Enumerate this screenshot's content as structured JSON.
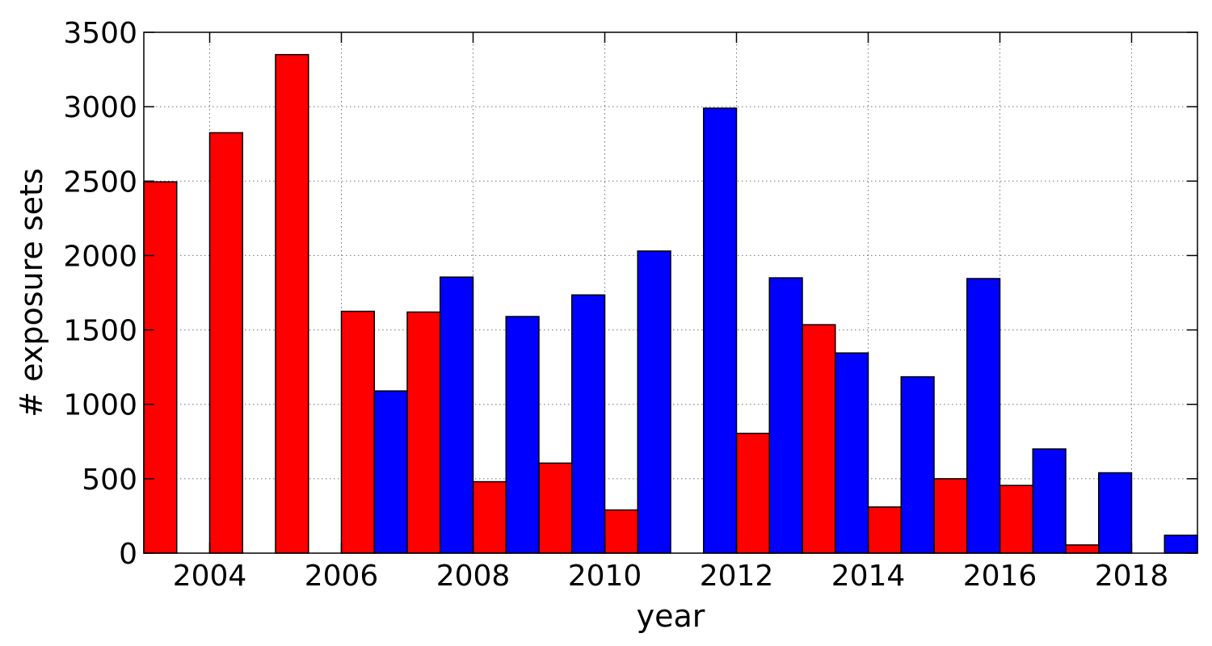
{
  "chart_data": {
    "type": "bar",
    "xlabel": "year",
    "ylabel": "# exposure sets",
    "ylim": [
      0,
      3500
    ],
    "xlim": [
      2003,
      2019
    ],
    "grid": true,
    "xticks": [
      2004,
      2006,
      2008,
      2010,
      2012,
      2014,
      2016,
      2018
    ],
    "yticks": [
      0,
      500,
      1000,
      1500,
      2000,
      2500,
      3000,
      3500
    ],
    "bin_width": 1,
    "series": [
      {
        "color": "#ff0000",
        "x": [
          2003,
          2004,
          2005,
          2006,
          2007,
          2008,
          2009,
          2010,
          2011,
          2012,
          2013,
          2014,
          2015,
          2016,
          2017,
          2018
        ],
        "values": [
          2495,
          2825,
          3350,
          1625,
          1620,
          480,
          605,
          290,
          0,
          805,
          1535,
          310,
          500,
          455,
          55,
          0
        ]
      },
      {
        "color": "#0000ff",
        "x": [
          2003,
          2004,
          2005,
          2006,
          2007,
          2008,
          2009,
          2010,
          2011,
          2012,
          2013,
          2014,
          2015,
          2016,
          2017,
          2018
        ],
        "values": [
          0,
          0,
          0,
          1090,
          1855,
          1590,
          1735,
          2030,
          2990,
          1850,
          1345,
          1185,
          1845,
          700,
          540,
          120
        ]
      }
    ]
  }
}
